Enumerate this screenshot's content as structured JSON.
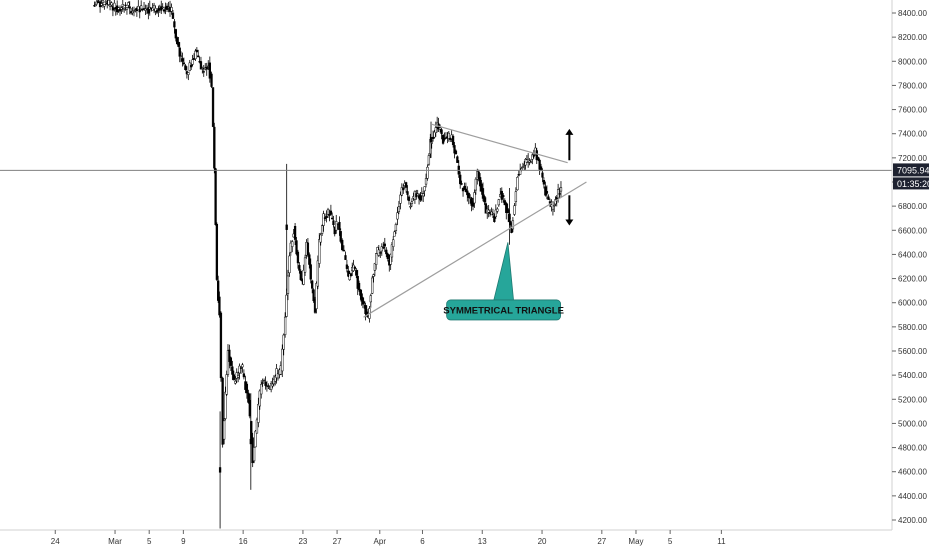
{
  "chart_data": {
    "type": "candlestick",
    "ylim": [
      4100,
      8500
    ],
    "y_ticks": [
      4200,
      4400,
      4600,
      4800,
      5000,
      5200,
      5400,
      5600,
      5800,
      6000,
      6200,
      6400,
      6600,
      6800,
      7000,
      7200,
      7400,
      7600,
      7800,
      8000,
      8200,
      8400
    ],
    "y_tick_labels": [
      "4200.00",
      "4400.00",
      "4600.00",
      "4800.00",
      "5000.00",
      "5200.00",
      "5400.00",
      "5600.00",
      "5800.00",
      "6000.00",
      "6200.00",
      "6400.00",
      "6600.00",
      "6800.00",
      "7000.00",
      "7200.00",
      "7400.00",
      "7600.00",
      "7800.00",
      "8000.00",
      "8200.00",
      "8400.00"
    ],
    "x_ticks": [
      {
        "label": "24",
        "day": -6
      },
      {
        "label": "Mar",
        "day": 1
      },
      {
        "label": "5",
        "day": 5
      },
      {
        "label": "9",
        "day": 9
      },
      {
        "label": "16",
        "day": 16
      },
      {
        "label": "23",
        "day": 23
      },
      {
        "label": "27",
        "day": 27
      },
      {
        "label": "Apr",
        "day": 32
      },
      {
        "label": "6",
        "day": 37
      },
      {
        "label": "13",
        "day": 44
      },
      {
        "label": "20",
        "day": 51
      },
      {
        "label": "27",
        "day": 58
      },
      {
        "label": "May",
        "day": 62
      },
      {
        "label": "5",
        "day": 66
      },
      {
        "label": "11",
        "day": 72
      }
    ],
    "grid": false,
    "current_price": 7095.94,
    "current_price_label": "7095.94",
    "countdown_label": "01:35:20",
    "anchors": [
      [
        -1.5,
        8480,
        8470
      ],
      [
        0.5,
        8470,
        8430
      ],
      [
        1.5,
        8440,
        8455
      ],
      [
        2.8,
        8420,
        8440
      ],
      [
        7,
        8450,
        8420
      ],
      [
        7.7,
        8420,
        8180
      ],
      [
        8.2,
        8180,
        8020
      ],
      [
        8.8,
        8020,
        7900
      ],
      [
        9.5,
        7900,
        8060
      ],
      [
        10.5,
        8080,
        7920
      ],
      [
        11.3,
        7920,
        7980
      ],
      [
        12,
        7970,
        7780
      ],
      [
        12.4,
        7780,
        7100
      ],
      [
        12.7,
        7100,
        6200
      ],
      [
        13.0,
        6200,
        5900
      ],
      [
        13.3,
        5900,
        4850
      ],
      [
        13.7,
        4850,
        5600
      ],
      [
        14.3,
        5600,
        5350
      ],
      [
        15,
        5350,
        5500
      ],
      [
        16,
        5420,
        5200
      ],
      [
        16.7,
        5200,
        4700
      ],
      [
        17.2,
        4700,
        5350
      ],
      [
        18.2,
        5350,
        5280
      ],
      [
        19.2,
        5280,
        5420
      ],
      [
        20,
        5380,
        5450
      ],
      [
        20.5,
        5450,
        5900
      ],
      [
        21,
        5900,
        6400
      ],
      [
        21.5,
        6400,
        6600
      ],
      [
        22,
        6620,
        6300
      ],
      [
        22.5,
        6300,
        6150
      ],
      [
        23,
        6150,
        6500
      ],
      [
        23.5,
        6500,
        6200
      ],
      [
        24.0,
        6200,
        5950
      ],
      [
        24.5,
        5950,
        6500
      ],
      [
        25.0,
        6500,
        6720
      ],
      [
        25.5,
        6700,
        6750
      ],
      [
        26.2,
        6760,
        6600
      ],
      [
        26.8,
        6600,
        6680
      ],
      [
        27.2,
        6680,
        6500
      ],
      [
        27.5,
        6500,
        6400
      ],
      [
        27.9,
        6400,
        6200
      ],
      [
        28.4,
        6200,
        6300
      ],
      [
        29,
        6300,
        6150
      ],
      [
        29.5,
        6150,
        6000
      ],
      [
        30.1,
        6000,
        5880
      ],
      [
        30.7,
        5880,
        6200
      ],
      [
        31.2,
        6200,
        6450
      ],
      [
        31.8,
        6400,
        6480
      ],
      [
        32.5,
        6470,
        6330
      ],
      [
        33.2,
        6330,
        6600
      ],
      [
        33.8,
        6600,
        6900
      ],
      [
        34.5,
        6900,
        7000
      ],
      [
        35,
        7000,
        6820
      ],
      [
        35.5,
        6800,
        6900
      ],
      [
        36.2,
        6900,
        6880
      ],
      [
        37,
        6880,
        7050
      ],
      [
        37.5,
        7050,
        7320
      ],
      [
        38,
        7320,
        7480
      ],
      [
        38.8,
        7480,
        7350
      ],
      [
        39.5,
        7350,
        7380
      ],
      [
        40.5,
        7380,
        7200
      ],
      [
        41,
        7200,
        6980
      ],
      [
        41.5,
        6980,
        6880
      ],
      [
        42.5,
        6880,
        6820
      ],
      [
        43,
        6820,
        7100
      ],
      [
        43.5,
        7100,
        6760
      ],
      [
        44.5,
        6760,
        6700
      ],
      [
        45.5,
        6700,
        6920
      ],
      [
        46.2,
        6920,
        6780
      ],
      [
        46.9,
        6780,
        6580
      ],
      [
        47.5,
        6600,
        7050
      ],
      [
        48.2,
        7050,
        7150
      ],
      [
        49,
        7150,
        7180
      ],
      [
        49.6,
        7180,
        7250
      ],
      [
        50.3,
        7250,
        7130
      ],
      [
        50.8,
        7130,
        6950
      ],
      [
        51.3,
        6950,
        6780
      ],
      [
        52.2,
        6780,
        6880
      ],
      [
        52.8,
        6880,
        6950
      ],
      [
        53.3,
        6950,
        7150
      ]
    ],
    "trendlines": [
      {
        "name": "triangle-upper",
        "points": [
          [
            38.0,
            7480
          ],
          [
            54.0,
            7160
          ]
        ]
      },
      {
        "name": "triangle-lower",
        "points": [
          [
            30.1,
            5880
          ],
          [
            56.2,
            7000
          ]
        ]
      }
    ],
    "annotations": [
      {
        "text": "SYMMETRICAL TRIANGLE",
        "x": 46.5,
        "y": 5940,
        "pointer_to": [
          47.0,
          6500
        ]
      }
    ],
    "arrows": [
      {
        "direction": "up",
        "x": 54.2,
        "from": 7180,
        "to": 7440
      },
      {
        "direction": "down",
        "x": 54.2,
        "from": 6890,
        "to": 6640
      }
    ],
    "colors": {
      "candle": "#000000",
      "trendline": "#9e9e9e",
      "callout_fill": "#26a69a",
      "price_tag_bg": "#1e2230",
      "price_line": "#808080"
    }
  }
}
